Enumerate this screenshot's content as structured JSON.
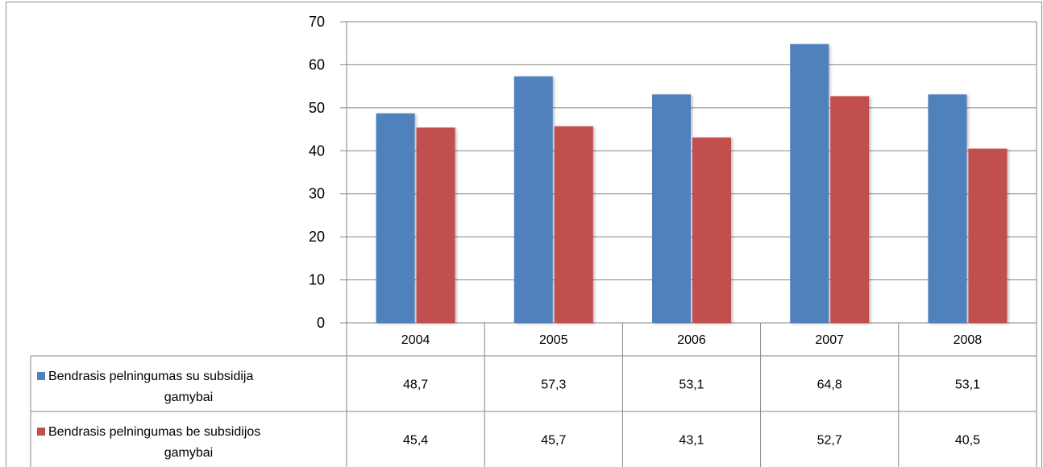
{
  "chart_data": {
    "type": "bar",
    "categories": [
      "2004",
      "2005",
      "2006",
      "2007",
      "2008"
    ],
    "series": [
      {
        "name": "Bendrasis pelningumas su subsidija gamybai",
        "name_lines": [
          "Bendrasis pelningumas su subsidija",
          "gamybai"
        ],
        "values": [
          48.7,
          57.3,
          53.1,
          64.8,
          53.1
        ],
        "labels": [
          "48,7",
          "57,3",
          "53,1",
          "64,8",
          "53,1"
        ],
        "color": "#4f81bd"
      },
      {
        "name": "Bendrasis pelningumas be subsidijos gamybai",
        "name_lines": [
          "Bendrasis pelningumas be subsidijos",
          "gamybai"
        ],
        "values": [
          45.4,
          45.7,
          43.1,
          52.7,
          40.5
        ],
        "labels": [
          "45,4",
          "45,7",
          "43,1",
          "52,7",
          "40,5"
        ],
        "color": "#c0504d"
      }
    ],
    "ylim": [
      0,
      70
    ],
    "yticks": [
      "0",
      "10",
      "20",
      "30",
      "40",
      "50",
      "60",
      "70"
    ],
    "grid": true,
    "legend": "data table"
  }
}
